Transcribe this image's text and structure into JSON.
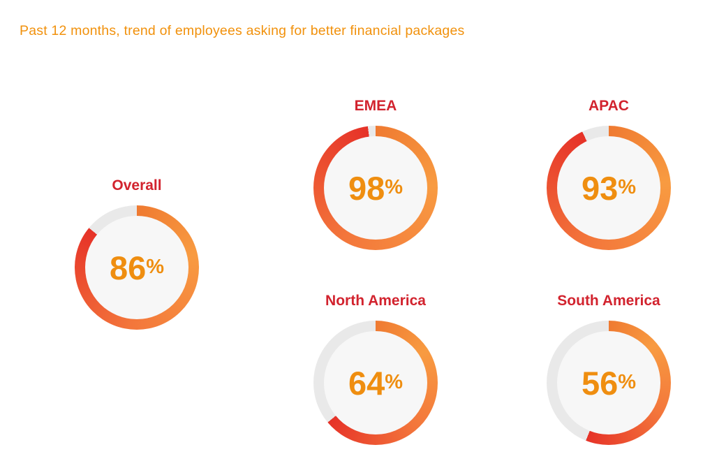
{
  "title": {
    "text": "Past 12 months, trend of employees asking for better financial packages",
    "color": "#F1910C"
  },
  "chart_data": {
    "type": "pie",
    "subtype": "donut-gauge-multiples",
    "title": "Past 12 months, trend of employees asking for better financial packages",
    "unit": "%",
    "series": [
      {
        "label": "Overall",
        "value": 86
      },
      {
        "label": "EMEA",
        "value": 98
      },
      {
        "label": "APAC",
        "value": 93
      },
      {
        "label": "North America",
        "value": 64
      },
      {
        "label": "South America",
        "value": 56
      }
    ],
    "ring": {
      "start_angle_deg": 0,
      "direction": "clockwise",
      "gradient_stops": [
        "#EF7A31",
        "#F89B41",
        "#F3763B",
        "#E63228"
      ],
      "track_color": "#E9E9E9",
      "inner_color": "#F7F7F7"
    },
    "label_color": "#D2232E",
    "value_color": "#EF8E10",
    "legend": "none",
    "grid": "off"
  }
}
